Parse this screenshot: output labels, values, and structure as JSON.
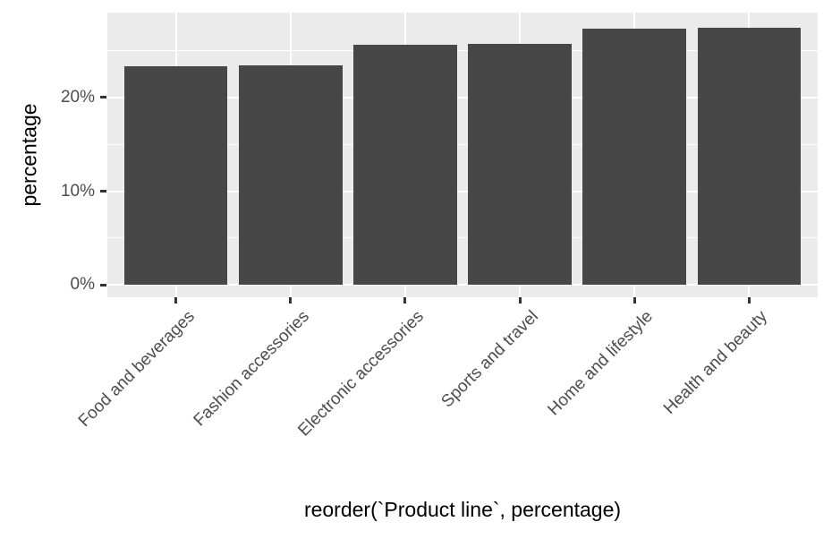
{
  "chart_data": {
    "type": "bar",
    "title": "",
    "xlabel": "reorder(`Product line`, percentage)",
    "ylabel": "percentage",
    "categories": [
      "Food and beverages",
      "Fashion accessories",
      "Electronic accessories",
      "Sports and travel",
      "Home and lifestyle",
      "Health and beauty"
    ],
    "values": [
      23.3,
      23.4,
      25.6,
      25.7,
      27.3,
      27.4
    ],
    "y_ticks": [
      {
        "value": 0,
        "label": "0%"
      },
      {
        "value": 10,
        "label": "10%"
      },
      {
        "value": 20,
        "label": "20%"
      }
    ],
    "y_minor_ticks": [
      5,
      15,
      25
    ],
    "ylim": [
      -1.3,
      29.05
    ],
    "bar_width_ratio": 0.9,
    "x_label_angle_deg": -45,
    "grid": true,
    "legend": false,
    "colors": {
      "bar_fill": "#474747",
      "panel_bg": "#EBEBEB",
      "grid_major": "#FFFFFF",
      "grid_minor": "#FFFFFF",
      "tick_mark": "#333333",
      "tick_label": "#4D4D4D",
      "axis_title": "#000000",
      "background": "#FFFFFF"
    }
  }
}
